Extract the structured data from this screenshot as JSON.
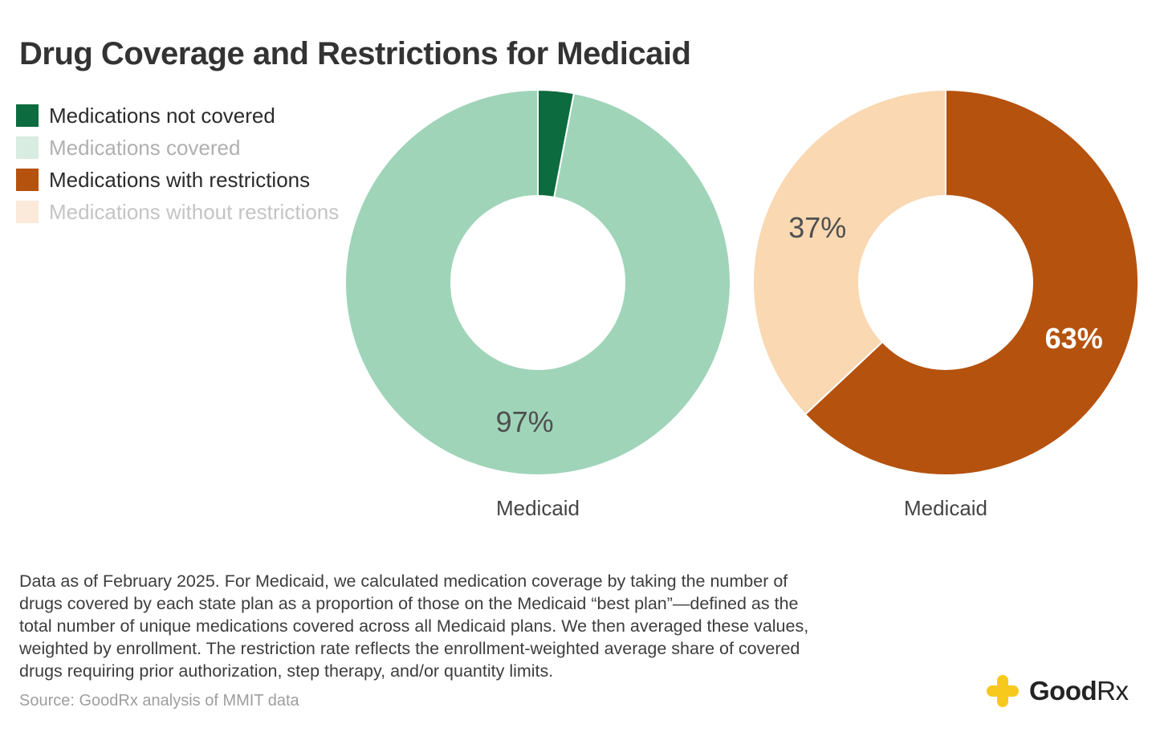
{
  "title": "Drug Coverage and Restrictions for Medicaid",
  "legend": {
    "items": [
      {
        "label": "Medications not covered",
        "swatch": "#0d6b40",
        "text_color": "#2b2b2b"
      },
      {
        "label": "Medications covered",
        "swatch": "#d8ece2",
        "text_color": "#b0b0b0"
      },
      {
        "label": "Medications with restrictions",
        "swatch": "#b5520e",
        "text_color": "#2b2b2b"
      },
      {
        "label": "Medications without restrictions",
        "swatch": "#fbe9d9",
        "text_color": "#c4c4c4"
      }
    ]
  },
  "chart_data": [
    {
      "type": "pie",
      "subtype": "donut",
      "category_label": "Medicaid",
      "start_angle_deg": 0,
      "inner_radius_ratio": 0.45,
      "legend_position": "left",
      "slices": [
        {
          "name": "Medications not covered",
          "value": 3,
          "color": "#0d6b40",
          "show_label": false,
          "label": "",
          "label_color": "",
          "label_bold": false
        },
        {
          "name": "Medications covered",
          "value": 97,
          "color": "#9fd4b9",
          "show_label": true,
          "label": "97%",
          "label_color": "#4f4f4f",
          "label_bold": false
        }
      ]
    },
    {
      "type": "pie",
      "subtype": "donut",
      "category_label": "Medicaid",
      "start_angle_deg": 0,
      "inner_radius_ratio": 0.45,
      "legend_position": "left",
      "slices": [
        {
          "name": "Medications with restrictions",
          "value": 63,
          "color": "#b5520e",
          "show_label": true,
          "label": "63%",
          "label_color": "#ffffff",
          "label_bold": true
        },
        {
          "name": "Medications without restrictions",
          "value": 37,
          "color": "#f9d8b2",
          "show_label": true,
          "label": "37%",
          "label_color": "#4f4f4f",
          "label_bold": false
        }
      ]
    }
  ],
  "footnote": "Data as of February 2025. For Medicaid, we calculated medication coverage by taking the number of\ndrugs covered by each state plan as a proportion of those on the Medicaid “best plan”—defined as the\ntotal number of unique medications covered across all Medicaid plans. We then averaged these values,\nweighted by enrollment. The restriction rate reflects the enrollment-weighted average share of covered\ndrugs requiring prior authorization, step therapy, and/or quantity limits.",
  "source": "Source: GoodRx analysis of MMIT data",
  "logo": {
    "brand_bold": "Good",
    "brand_light": "Rx",
    "cross_color": "#f8c91d"
  }
}
